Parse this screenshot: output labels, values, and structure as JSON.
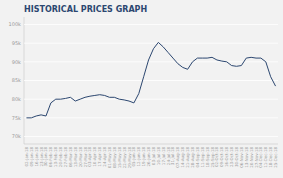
{
  "chart_data": {
    "type": "line",
    "title": "HISTORICAL PRICES GRAPH",
    "categories": [
      "02-Jan-18",
      "09-Jan-18",
      "16-Jan-18",
      "23-Jan-18",
      "30-Jan-18",
      "06-Feb-18",
      "13-Feb-18",
      "20-Feb-18",
      "27-Feb-18",
      "06-Mar-18",
      "13-Mar-18",
      "20-Mar-18",
      "27-Mar-18",
      "03-Apr-18",
      "10-Apr-18",
      "17-Apr-18",
      "24-Apr-18",
      "01-May-18",
      "08-May-18",
      "15-May-18",
      "22-May-18",
      "29-May-18",
      "05-Jun-18",
      "12-Jun-18",
      "19-Jun-18",
      "26-Jun-18",
      "03-Jul-18",
      "10-Jul-18",
      "17-Jul-18",
      "24-Jul-18",
      "31-Jul-18",
      "07-Aug-18",
      "14-Aug-18",
      "21-Aug-18",
      "28-Aug-18",
      "04-Sep-18",
      "11-Sep-18",
      "18-Sep-18",
      "25-Sep-18",
      "02-Oct-18",
      "09-Oct-18",
      "16-Oct-18",
      "23-Oct-18",
      "30-Oct-18",
      "06-Nov-18",
      "13-Nov-18",
      "20-Nov-18",
      "27-Nov-18",
      "04-Dec-18",
      "11-Dec-18",
      "18-Dec-18",
      "25-Dec-18"
    ],
    "values": [
      75000,
      75000,
      75500,
      75800,
      75500,
      79000,
      80000,
      80000,
      80200,
      80500,
      79500,
      80000,
      80500,
      80800,
      81000,
      81200,
      81000,
      80500,
      80500,
      80000,
      79800,
      79500,
      79000,
      81500,
      86000,
      90500,
      93500,
      95200,
      94000,
      92500,
      91000,
      89500,
      88500,
      88000,
      90000,
      91000,
      91000,
      91000,
      91200,
      90500,
      90200,
      90000,
      89000,
      88800,
      89000,
      91000,
      91200,
      91000,
      91000,
      90000,
      86000,
      83500
    ],
    "color": "#2c4770",
    "ylim": [
      68000,
      102000
    ],
    "yticks": [
      {
        "value": 70000,
        "label": "70k"
      },
      {
        "value": 75000,
        "label": "75k"
      },
      {
        "value": 80000,
        "label": "80k"
      },
      {
        "value": 85000,
        "label": "85k"
      },
      {
        "value": 90000,
        "label": "90k"
      },
      {
        "value": 95000,
        "label": "95k"
      },
      {
        "value": 100000,
        "label": "100k"
      }
    ],
    "grid": true
  }
}
